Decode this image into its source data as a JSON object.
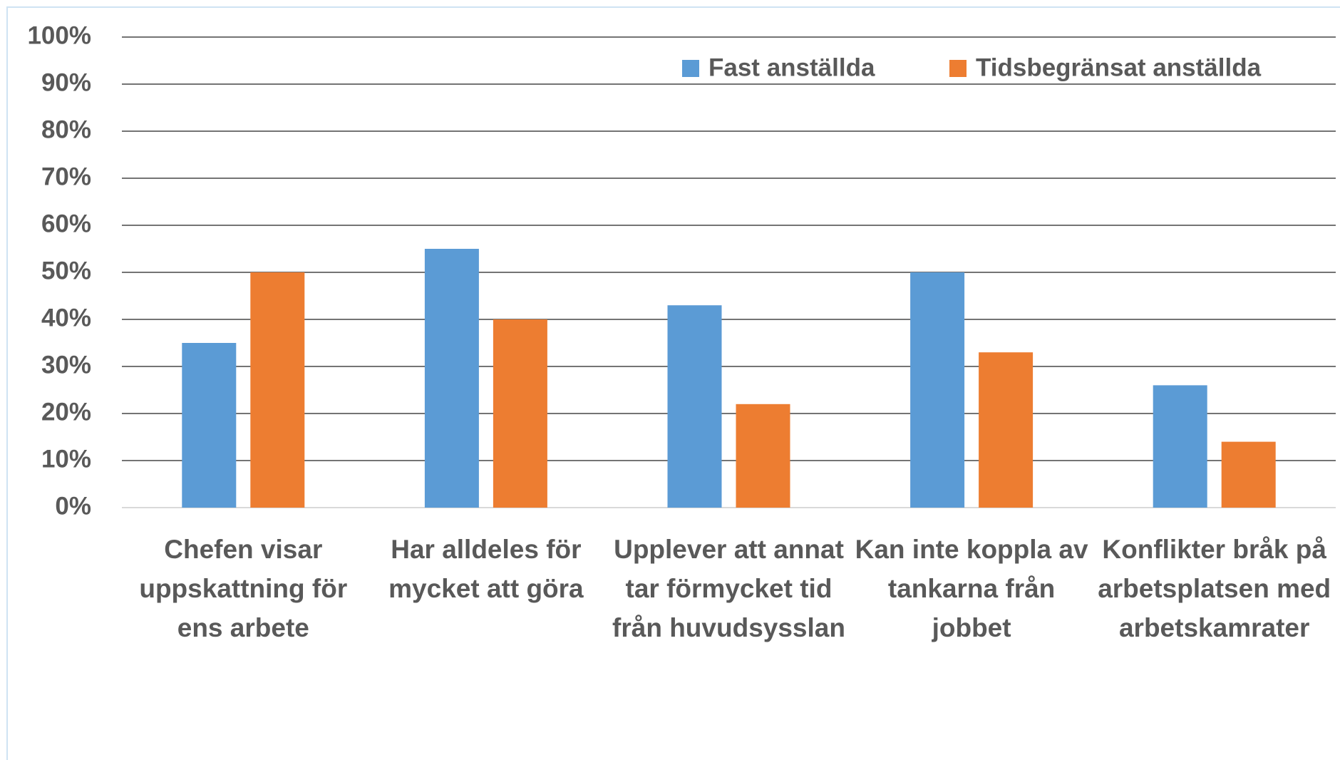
{
  "chart_data": {
    "type": "bar",
    "categories": [
      "Chefen visar uppskattning för ens arbete",
      "Har alldeles för mycket att göra",
      "Upplever att annat tar förmycket tid från huvudsysslan",
      "Kan inte koppla av tankarna från jobbet",
      "Konflikter bråk på arbetsplatsen med arbetskamrater"
    ],
    "series": [
      {
        "name": "Fast anställda",
        "color": "#5b9bd5",
        "values": [
          35,
          55,
          43,
          50,
          26
        ]
      },
      {
        "name": "Tidsbegränsat anställda",
        "color": "#ed7d31",
        "values": [
          50,
          40,
          22,
          33,
          14
        ]
      }
    ],
    "ylim": [
      0,
      100
    ],
    "yticks": [
      {
        "value": 0,
        "label": "0%"
      },
      {
        "value": 10,
        "label": "10%"
      },
      {
        "value": 20,
        "label": "20%"
      },
      {
        "value": 30,
        "label": "30%"
      },
      {
        "value": 40,
        "label": "40%"
      },
      {
        "value": 50,
        "label": "50%"
      },
      {
        "value": 60,
        "label": "60%"
      },
      {
        "value": 70,
        "label": "70%"
      },
      {
        "value": 80,
        "label": "80%"
      },
      {
        "value": 90,
        "label": "90%"
      },
      {
        "value": 100,
        "label": "100%"
      }
    ],
    "grid": true,
    "legend": "top"
  }
}
